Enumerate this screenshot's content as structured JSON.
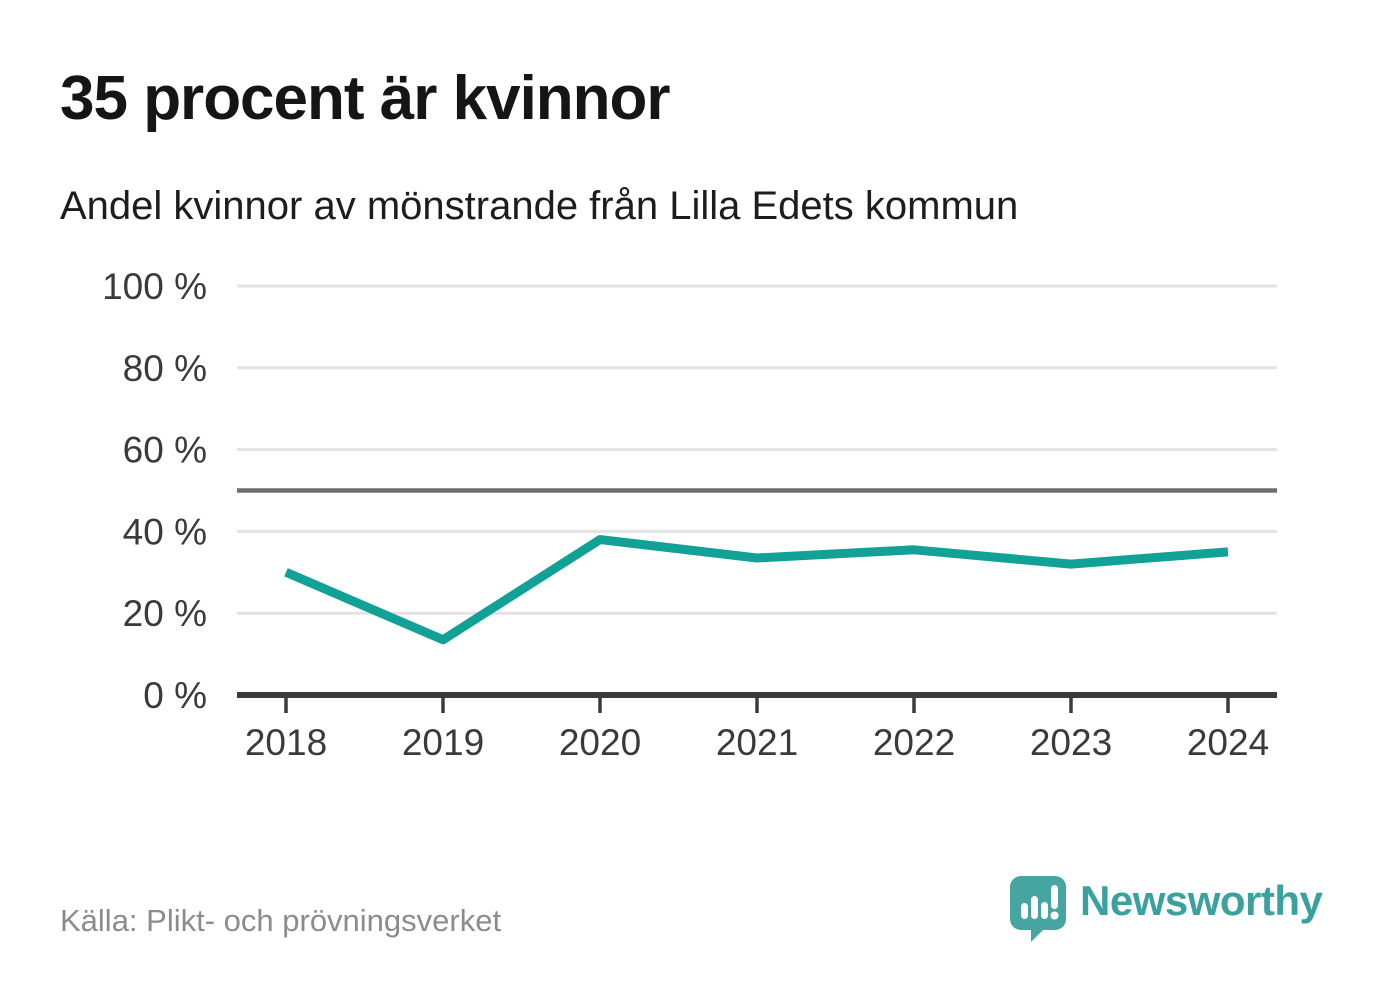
{
  "page": {
    "title": "35 procent är kvinnor",
    "subtitle": "Andel kvinnor av mönstrande från Lilla Edets kommun"
  },
  "footer": {
    "source": "Källa: Plikt- och prövningsverket"
  },
  "branding": {
    "name": "Newsworthy",
    "logo_icon": "newsworthy-speech-bubble-barchart-icon",
    "icon_color": "#46A5A0",
    "wordmark_color": "#3AA29E"
  },
  "colors": {
    "series_line": "#11A196",
    "reference_line": "#6F6F6F",
    "gridline": "#E3E3E3",
    "axis": "#3B3B3B",
    "tick_label": "#3A3A3A",
    "title_text": "#151515",
    "source_text": "#8C8C8C",
    "background": "#FFFFFF"
  },
  "chart_data": {
    "type": "line",
    "title": "35 procent är kvinnor",
    "subtitle": "Andel kvinnor av mönstrande från Lilla Edets kommun",
    "xlabel": "",
    "ylabel": "",
    "unit": "%",
    "x": [
      "2018",
      "2019",
      "2020",
      "2021",
      "2022",
      "2023",
      "2024"
    ],
    "series": [
      {
        "name": "Andel kvinnor av mönstrande",
        "values": [
          30,
          13.5,
          38,
          33.5,
          35.5,
          32,
          35
        ],
        "color": "#11A196"
      }
    ],
    "ylim": [
      0,
      100
    ],
    "yticks": [
      0,
      20,
      40,
      60,
      80,
      100
    ],
    "ytick_labels": [
      "0 %",
      "20 %",
      "40 %",
      "60 %",
      "80 %",
      "100 %"
    ],
    "reference_line": {
      "value": 50
    },
    "grid": true,
    "legend_position": "none"
  }
}
